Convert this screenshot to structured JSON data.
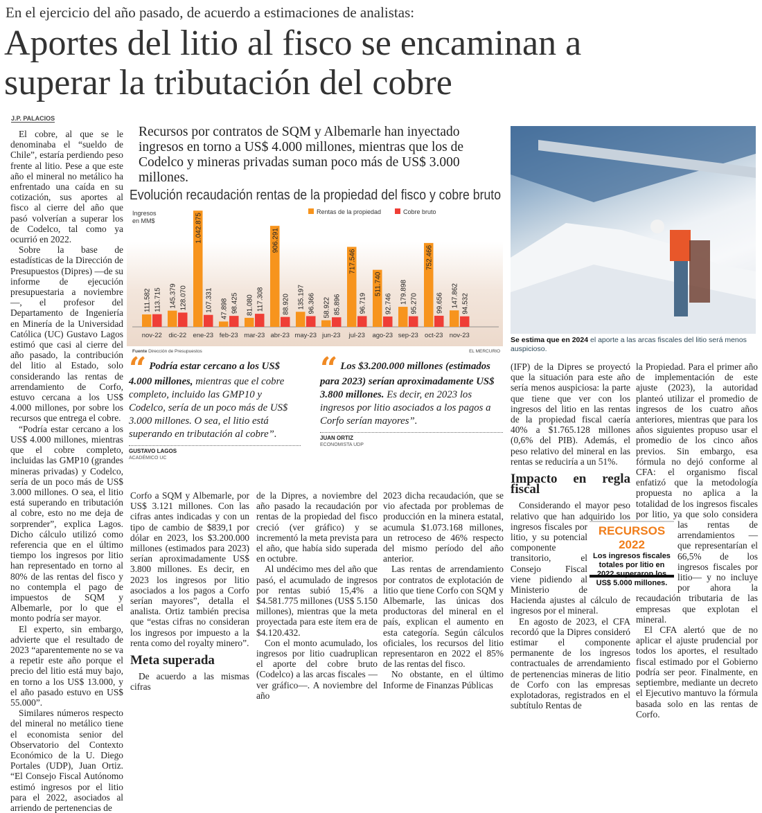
{
  "kicker": "En el ejercicio del año pasado, de acuerdo a estimaciones de analistas:",
  "headline": "Aportes del litio al fisco se encaminan a superar la tributación del cobre",
  "byline": "J.P. PALACIOS",
  "deck": "Recursos por contratos de SQM y Albemarle han inyectado ingresos en torno a US$ 4.000 millones, mientras que los de Codelco y mineras privadas suman poco más de US$ 3.000 millones.",
  "chart_data": {
    "type": "bar",
    "title": "Evolución recaudación rentas de la propiedad del fisco y cobre bruto",
    "ylabel": "Ingresos en MM$",
    "categories": [
      "nov-22",
      "dic-22",
      "ene-23",
      "feb-23",
      "mar-23",
      "abr-23",
      "may-23",
      "jun-23",
      "jul-23",
      "ago-23",
      "sep-23",
      "oct-23",
      "nov-23"
    ],
    "series": [
      {
        "name": "Rentas de la propiedad",
        "color": "#f7941d",
        "values": [
          111582,
          145379,
          1042875,
          47898,
          81080,
          906291,
          135197,
          58922,
          717546,
          511740,
          179898,
          752466,
          147862
        ],
        "labels": [
          "111.582",
          "145.379",
          "1.042.875",
          "47.898",
          "81.080",
          "906.291",
          "135.197",
          "58.922",
          "717.546",
          "511.740",
          "179.898",
          "752.466",
          "147.862"
        ]
      },
      {
        "name": "Cobre bruto",
        "color": "#ef3e36",
        "values": [
          113715,
          128070,
          107331,
          98425,
          117308,
          88920,
          96366,
          85896,
          96719,
          92746,
          95270,
          99656,
          94532
        ],
        "labels": [
          "113.715",
          "128.070",
          "107.331",
          "98.425",
          "117.308",
          "88.920",
          "96.366",
          "85.896",
          "96.719",
          "92.746",
          "95.270",
          "99.656",
          "94.532"
        ]
      }
    ],
    "ylim": [
      0,
      1050000
    ],
    "legend": "top-right",
    "grid": false,
    "source_label": "Fuente",
    "source": "Dirección de Presupuestos",
    "credit": "EL MERCURIO"
  },
  "photo_caption": {
    "bold": "Se estima que en 2024",
    "text": " el aporte a las arcas fiscales del litio será menos auspicioso."
  },
  "quotes": [
    {
      "bold": "Podría estar cercano a los US$ 4.000 millones,",
      "text": " mientras que el cobre completo, incluido las GMP10 y Codelco, sería de un poco más de US$ 3.000 millones. O sea, el litio está superando en tributación al cobre”.",
      "name": "GUSTAVO LAGOS",
      "role": "ACADÉMICO UC"
    },
    {
      "bold": "Los $3.200.000 millones (estimados para 2023) serían aproximadamente US$ 3.800 millones.",
      "text": " Es decir, en 2023 los ingresos por litio asociados a los pagos a Corfo serían mayores”.",
      "name": "JUAN ORTIZ",
      "role": "ECONOMISTA UDP"
    }
  ],
  "columns": {
    "c1": [
      "El cobre, al que se le denominaba el “sueldo de Chile”, estaría perdiendo peso frente al litio. Pese a que este año el mineral no metálico ha enfrentado una caída en su cotización, sus aportes al fisco al cierre del año que pasó volverían a superar los de Codelco, tal como ya ocurrió en 2022.",
      "Sobre la base de estadísticas de la Dirección de Presupuestos (Dipres) —de su informe de ejecución presupuestaria a noviembre—, el profesor del Departamento de Ingeniería en Minería de la Universidad Católica (UC) Gustavo Lagos estimó que casi al cierre del año pasado, la contribución del litio al Estado, solo considerando las rentas de arrendamiento de Corfo, estuvo cercana a los US$ 4.000 millones, por sobre los recursos que entrega el cobre.",
      "“Podría estar cercano a los US$ 4.000 millones, mientras que el cobre completo, incluidas las GMP10 (grandes mineras privadas) y Codelco, sería de un poco más de US$ 3.000 millones. O sea, el litio está superando en tributación al cobre, esto no me deja de sorprender”, explica Lagos. Dicho cálculo utilizó como referencia que en el último tiempo los ingresos por litio han representado en torno al 80% de las rentas del fisco y no contempla el pago de impuestos de SQM y Albemarle, por lo que el monto podría ser mayor.",
      "El experto, sin embargo, advierte que el resultado de 2023 “aparentemente no se va a repetir este año porque el precio del litio está muy bajo, en torno a los US$ 13.000, y el año pasado estuvo en US$ 55.000”.",
      "Similares números respecto del mineral no metálico tiene el economista senior del Observatorio del Contexto Económico de la U. Diego Portales (UDP), Juan Ortiz. “El Consejo Fiscal Autónomo estimó ingresos por el litio para el 2022, asociados al arriendo de pertenencias de"
    ],
    "c2": [
      "Corfo a SQM y Albemarle, por US$ 3.121 millones. Con las cifras antes indicadas y con un tipo de cambio de $839,1 por dólar en 2023, los $3.200.000 millones (estimados para 2023) serían aproximadamente US$ 3.800 millones. Es decir, en 2023 los ingresos por litio asociados a los pagos a Corfo serían mayores”, detalla el analista. Ortiz también precisa que “estas cifras no consideran los ingresos por impuesto a la renta como del royalty minero”."
    ],
    "c2_heading": "Meta superada",
    "c2_after": "De acuerdo a las mismas cifras",
    "c3": [
      "de la Dipres, a noviembre del año pasado la recaudación por rentas de la propiedad del fisco creció (ver gráfico) y se incrementó la meta prevista para el año, que había sido superada en octubre.",
      "Al undécimo mes del año que pasó, el acumulado de ingresos por rentas subió 15,4% a $4.581.775 millones (US$ 5.150 millones), mientras que la meta proyectada para este ítem era de $4.120.432.",
      "Con el monto acumulado, los ingresos por litio cuadruplican el aporte del cobre bruto (Codelco) a las arcas fiscales —ver gráfico—. A noviembre del año"
    ],
    "c4": [
      "2023 dicha recaudación, que se vio afectada por problemas de producción en la minera estatal, acumula $1.073.168 millones, un retroceso de 46% respecto del mismo período del año anterior.",
      "Las rentas de arrendamiento por contratos de explotación de litio que tiene Corfo con SQM y Albemarle, las únicas dos productoras del mineral en el país, explican el aumento en esta categoría. Según cálculos oficiales, los recursos del litio representaron en 2022 el 85% de las rentas del fisco.",
      "No obstante, en el último Informe de Finanzas Públicas"
    ],
    "c5_before": "(IFP) de la Dipres se proyectó que la situación para este año sería menos auspiciosa: la parte que tiene que ver con los ingresos del litio en las rentas de la propiedad fiscal caería 40% a $1.765.128 millones (0,6% del PIB). Además, el peso relativo del mineral en las rentas se reduciría a un 51%.",
    "c5_heading": "Impacto en regla fiscal",
    "c5": [
      "Considerando el mayor peso relativo que han adquirido los ingresos fiscales por litio, y su potencial componente transitorio, el Consejo Fiscal viene pidiendo al Ministerio de Hacienda ajustes al cálculo de ingresos por el mineral.",
      "En agosto de 2023, el CFA recordó que la Dipres consideró estimar el componente permanente de los ingresos contractuales de arrendamiento de pertenencias mineras de litio de Corfo con las empresas explotadoras, registrados en el subtítulo Rentas de"
    ],
    "c6": [
      "la Propiedad. Para el primer año de implementación de este ajuste (2023), la autoridad planteó utilizar el promedio de ingresos de los cuatro años anteriores, mientras que para los años siguientes propuso usar el promedio de los cinco años previos. Sin embargo, esa fórmula no dejó conforme al CFA: el organismo fiscal enfatizó que la metodología propuesta no aplica a la totalidad de los ingresos fiscales por litio, ya que solo considera las rentas de arrendamientos —que representarían el 66,5% de los ingresos fiscales por litio— y no incluye por ahora la recaudación tributaria de las empresas que explotan el mineral.",
      "El CFA alertó que de no aplicar el ajuste prudencial por todos los aportes, el resultado fiscal estimado por el Gobierno podría ser peor. Finalmente, en septiembre, mediante un decreto el Ejecutivo mantuvo la fórmula basada solo en las rentas de Corfo."
    ]
  },
  "sidebar_box": {
    "title": "RECURSOS 2022",
    "text": "Los ingresos fiscales totales por litio en 2022 superaron los US$ 5.000 millones."
  }
}
